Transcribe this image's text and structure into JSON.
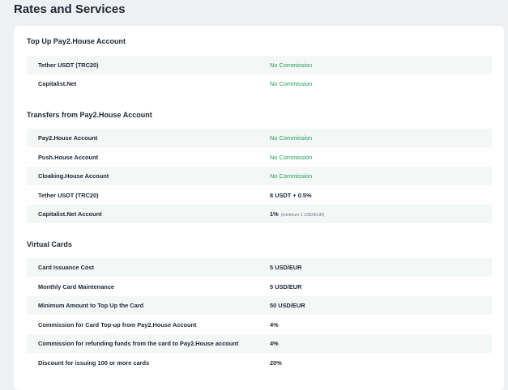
{
  "page": {
    "title": "Rates and Services"
  },
  "sections": [
    {
      "title": "Top Up Pay2.House Account",
      "rows": [
        {
          "label": "Tether USDT (TRC20)",
          "value": "No Commission",
          "style": "green"
        },
        {
          "label": "Capitalist.Net",
          "value": "No Commission",
          "style": "green"
        }
      ]
    },
    {
      "title": "Transfers from Pay2.House Account",
      "rows": [
        {
          "label": "Pay2.House Account",
          "value": "No Commission",
          "style": "green"
        },
        {
          "label": "Push.House Account",
          "value": "No Commission",
          "style": "green"
        },
        {
          "label": "Cloaking.House Account",
          "value": "No Commission",
          "style": "green"
        },
        {
          "label": "Tether USDT (TRC20)",
          "value": "8 USDT + 0.5%",
          "style": "plain"
        },
        {
          "label": "Capitalist.Net Account",
          "value": "1%",
          "note": "(minimum 1 USD/EUR)",
          "style": "plain"
        }
      ]
    },
    {
      "title": "Virtual Cards",
      "rows": [
        {
          "label": "Card Issuance Cost",
          "value": "5 USD/EUR",
          "style": "plain"
        },
        {
          "label": "Monthly Card Maintenance",
          "value": "5 USD/EUR",
          "style": "plain"
        },
        {
          "label": "Minimum Amount to Top Up the Card",
          "value": "50 USD/EUR",
          "style": "plain"
        },
        {
          "label": "Commission for Card Top-up from Pay2.House Account",
          "value": "4%",
          "style": "plain"
        },
        {
          "label": "Commission for refunding funds from the card to Pay2.House account",
          "value": "4%",
          "style": "plain"
        },
        {
          "label": "Discount for issuing 100 or more cards",
          "value": "20%",
          "style": "plain"
        }
      ]
    }
  ],
  "colors": {
    "accent_green": "#1f9d5a",
    "row_shade": "#f3f7f6",
    "background": "#eef1f3"
  }
}
